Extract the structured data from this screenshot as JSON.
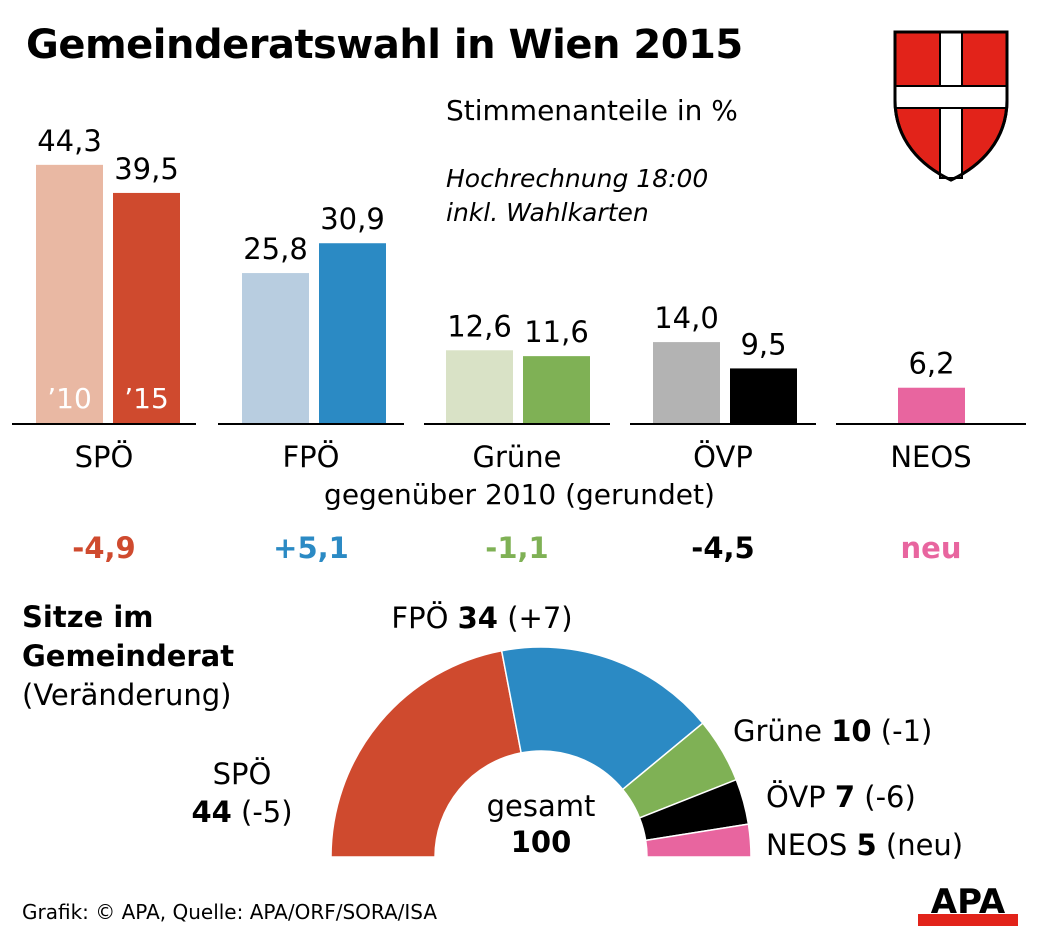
{
  "header": {
    "title": "Gemeinderatswahl in Wien 2015",
    "subtitle": "Stimmenanteile in %",
    "note_line1": "Hochrechnung 18:00",
    "note_line2": "inkl. Wahlkarten"
  },
  "change_header": "gegenüber 2010 (gerundet)",
  "seats": {
    "title_line1": "Sitze im",
    "title_line2": "Gemeinderat",
    "title_line3": "(Veränderung)",
    "center_label": "gesamt",
    "center_value": "100"
  },
  "footer": {
    "source": "Grafik: © APA, Quelle: APA/ORF/SORA/ISA",
    "logo_text": "APA"
  },
  "colors": {
    "spo": "#cf4a2e",
    "spo_light": "#e9b8a3",
    "fpo": "#2b8ac4",
    "fpo_light": "#b8cde0",
    "grune": "#7fb155",
    "grune_light": "#d9e2c6",
    "ovp": "#000000",
    "ovp_light": "#b3b3b3",
    "neos": "#e8659f",
    "coat_red": "#e2231a"
  },
  "chart_data": [
    {
      "type": "bar",
      "categories": [
        "SPÖ",
        "FPÖ",
        "Grüne",
        "ÖVP",
        "NEOS"
      ],
      "series": [
        {
          "name": "’10",
          "values": [
            44.3,
            25.8,
            12.6,
            14.0,
            null
          ],
          "labels": [
            "44,3",
            "25,8",
            "12,6",
            "14,0",
            ""
          ]
        },
        {
          "name": "’15",
          "values": [
            39.5,
            30.9,
            11.6,
            9.5,
            6.2
          ],
          "labels": [
            "39,5",
            "30,9",
            "11,6",
            "9,5",
            "6,2"
          ]
        }
      ],
      "change": [
        "-4,9",
        "+5,1",
        "-1,1",
        "-4,5",
        "neu"
      ],
      "ylim": [
        0,
        50
      ]
    },
    {
      "type": "pie",
      "style": "half-donut",
      "categories": [
        "SPÖ",
        "FPÖ",
        "Grüne",
        "ÖVP",
        "NEOS"
      ],
      "values": [
        44,
        34,
        10,
        7,
        5
      ],
      "change": [
        "-5",
        "+7",
        "-1",
        "-6",
        "neu"
      ]
    }
  ]
}
